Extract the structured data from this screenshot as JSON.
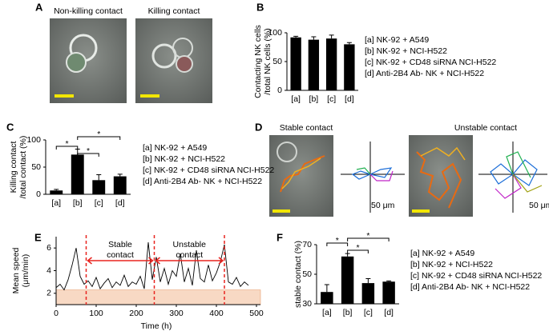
{
  "panels": [
    "A",
    "B",
    "C",
    "D",
    "E",
    "F"
  ],
  "panel_a": {
    "titles": [
      "Non-killing contact",
      "Killing contact"
    ]
  },
  "panel_d": {
    "titles": [
      "Stable contact",
      "Unstable contact"
    ],
    "scale_labels": [
      "50 μm",
      "50 μm"
    ]
  },
  "chart_data": [
    {
      "type": "bar",
      "categories": [
        "[a]",
        "[b]",
        "[c]",
        "[d]"
      ],
      "values": [
        92,
        88,
        90,
        80
      ],
      "errors": [
        2,
        5,
        6,
        3
      ],
      "color": "#000000",
      "ylim": [
        0,
        100
      ],
      "yticks": [
        0,
        50,
        100
      ],
      "ylabel": [
        "Contacting NK cells",
        "/total NK cells (%)"
      ],
      "notes": [
        "[a] NK-92 + A549",
        "[b] NK-92 + NCI-H522",
        "[c] NK-92 + CD48 siRNA NCI-H522",
        "[d] Anti-2B4 Ab- NK + NCI-H522"
      ],
      "notes_color": "#000000",
      "annotations": []
    },
    {
      "type": "bar",
      "categories": [
        "[a]",
        "[b]",
        "[c]",
        "[d]"
      ],
      "values": [
        7,
        73,
        26,
        33
      ],
      "errors": [
        2,
        10,
        10,
        4
      ],
      "color": "#000000",
      "ylim": [
        0,
        100
      ],
      "yticks": [
        0,
        50,
        100
      ],
      "ylabel": [
        "Killing contact",
        "/total contact (%)"
      ],
      "notes": [
        "[a] NK-92 + A549",
        "[b] NK-92 + NCI-H522",
        "[c] NK-92 + CD48 siRNA NCI-H522",
        "[d] Anti-2B4 Ab- NK + NCI-H522"
      ],
      "notes_color": "#e8231f",
      "annotations": [
        "*",
        "*",
        "*"
      ]
    },
    {
      "type": "line",
      "x": [
        0,
        10,
        20,
        30,
        40,
        50,
        60,
        70,
        80,
        90,
        100,
        110,
        120,
        130,
        140,
        150,
        160,
        170,
        180,
        190,
        200,
        210,
        220,
        230,
        240,
        250,
        260,
        270,
        280,
        290,
        300,
        310,
        320,
        330,
        340,
        350,
        360,
        370,
        380,
        390,
        400,
        410,
        420,
        430,
        440,
        450,
        460,
        470,
        480
      ],
      "values": [
        2.5,
        2.8,
        2.3,
        3.2,
        4.5,
        6,
        3.5,
        2.8,
        3.1,
        2.6,
        3.4,
        2.4,
        2.9,
        3.3,
        2.5,
        3.0,
        2.7,
        3.6,
        2.6,
        3.0,
        2.8,
        3.5,
        2.4,
        6.5,
        3.2,
        5.2,
        3.0,
        4.2,
        2.8,
        4.0,
        3.5,
        5.5,
        3.0,
        4.2,
        2.7,
        5.8,
        3.3,
        3.0,
        4.5,
        3.1,
        3.8,
        4.8,
        6.3,
        3.0,
        2.8,
        3.4,
        2.6,
        3.0,
        2.7
      ],
      "color": "#000000",
      "xlim": [
        0,
        500
      ],
      "xticks": [
        0,
        100,
        200,
        300,
        400,
        500
      ],
      "ylim": [
        1,
        7
      ],
      "yticks": [
        2,
        4,
        6
      ],
      "xlabel": "Time (h)",
      "ylabel": [
        "Mean speed",
        "(μm/min)"
      ],
      "events": [
        75,
        245,
        420
      ],
      "event_color": "#e8231f",
      "threshold": 2.3,
      "band_color": "#f8d9c4",
      "annotations": [
        [
          "Stable",
          "contact"
        ],
        [
          "Unstable",
          "contact"
        ]
      ]
    },
    {
      "type": "bar",
      "categories": [
        "[a]",
        "[b]",
        "[c]",
        "[d]"
      ],
      "values": [
        38,
        62,
        44,
        45
      ],
      "errors": [
        5,
        2,
        3,
        0.5
      ],
      "color": "#000000",
      "ylim": [
        30,
        70
      ],
      "yticks": [
        30,
        50,
        70
      ],
      "ylabel": [
        "stable contact (%)"
      ],
      "notes": [
        "[a] NK-92 + A549",
        "[b] NK-92 + NCI-H522",
        "[c] NK-92 + CD48 siRNA NCI-H522",
        "[d] Anti-2B4 Ab- NK + NCI-H522"
      ],
      "notes_color": "#e8231f",
      "annotations": [
        "*",
        "*",
        "*"
      ]
    }
  ]
}
